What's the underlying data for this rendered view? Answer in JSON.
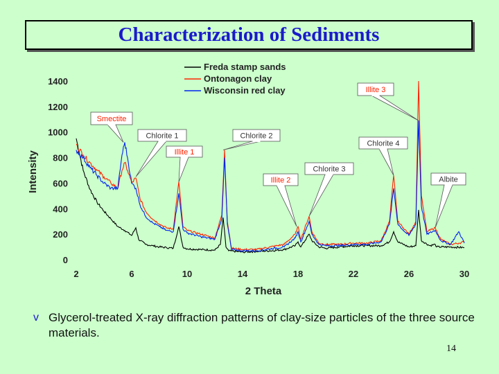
{
  "title": "Characterization of Sediments",
  "caption": {
    "bullet": "v",
    "text": "Glycerol-treated X-ray diffraction patterns of clay-size particles of the three source materials."
  },
  "page_number": "14",
  "colors": {
    "title": "#1a1acc",
    "background": "#ccffcc",
    "freda": "#000000",
    "ontonagon": "#ff2200",
    "wisconsin": "#0022ee"
  },
  "chart_data": {
    "type": "line",
    "xlabel": "2 Theta",
    "ylabel": "Intensity",
    "xlim": [
      2,
      30
    ],
    "ylim": [
      0,
      1400
    ],
    "x_ticks": [
      2,
      6,
      10,
      14,
      18,
      22,
      26,
      30
    ],
    "y_ticks": [
      0,
      200,
      400,
      600,
      800,
      1000,
      1200,
      1400
    ],
    "legend_position": "top",
    "series": [
      {
        "name": "Freda stamp sands",
        "color": "#000000",
        "points": [
          [
            2,
            950
          ],
          [
            2.5,
            700
          ],
          [
            3,
            550
          ],
          [
            3.5,
            450
          ],
          [
            4,
            380
          ],
          [
            4.5,
            320
          ],
          [
            5,
            260
          ],
          [
            5.5,
            230
          ],
          [
            6,
            190
          ],
          [
            6.3,
            250
          ],
          [
            6.5,
            160
          ],
          [
            7,
            120
          ],
          [
            7.5,
            110
          ],
          [
            8,
            100
          ],
          [
            8.5,
            95
          ],
          [
            9,
            90
          ],
          [
            9.4,
            260
          ],
          [
            9.7,
            100
          ],
          [
            10,
            85
          ],
          [
            11,
            80
          ],
          [
            12,
            75
          ],
          [
            12.4,
            120
          ],
          [
            12.6,
            330
          ],
          [
            12.8,
            100
          ],
          [
            13,
            70
          ],
          [
            14,
            60
          ],
          [
            15,
            65
          ],
          [
            16,
            70
          ],
          [
            17,
            80
          ],
          [
            17.8,
            110
          ],
          [
            18,
            140
          ],
          [
            18.2,
            100
          ],
          [
            18.8,
            200
          ],
          [
            19,
            150
          ],
          [
            19.5,
            100
          ],
          [
            20,
            90
          ],
          [
            21,
            100
          ],
          [
            22,
            110
          ],
          [
            23,
            110
          ],
          [
            24,
            110
          ],
          [
            24.6,
            140
          ],
          [
            24.9,
            220
          ],
          [
            25.2,
            140
          ],
          [
            26,
            100
          ],
          [
            26.5,
            110
          ],
          [
            26.7,
            390
          ],
          [
            26.9,
            150
          ],
          [
            27.5,
            110
          ],
          [
            27.9,
            120
          ],
          [
            28,
            100
          ],
          [
            29,
            100
          ],
          [
            30,
            95
          ]
        ]
      },
      {
        "name": "Ontonagon clay",
        "color": "#ff2200",
        "points": [
          [
            2,
            900
          ],
          [
            2.5,
            820
          ],
          [
            3,
            760
          ],
          [
            3.5,
            700
          ],
          [
            4,
            650
          ],
          [
            4.5,
            600
          ],
          [
            5,
            560
          ],
          [
            5.3,
            700
          ],
          [
            5.5,
            760
          ],
          [
            5.7,
            700
          ],
          [
            6,
            600
          ],
          [
            6.3,
            640
          ],
          [
            6.6,
            480
          ],
          [
            7,
            380
          ],
          [
            7.5,
            320
          ],
          [
            8,
            280
          ],
          [
            8.5,
            250
          ],
          [
            9,
            240
          ],
          [
            9.4,
            610
          ],
          [
            9.7,
            260
          ],
          [
            10,
            230
          ],
          [
            11,
            200
          ],
          [
            12,
            170
          ],
          [
            12.5,
            350
          ],
          [
            12.7,
            860
          ],
          [
            12.9,
            300
          ],
          [
            13.2,
            90
          ],
          [
            14,
            80
          ],
          [
            15,
            80
          ],
          [
            16,
            100
          ],
          [
            17,
            120
          ],
          [
            17.8,
            200
          ],
          [
            18,
            260
          ],
          [
            18.2,
            160
          ],
          [
            18.8,
            340
          ],
          [
            19,
            220
          ],
          [
            19.5,
            130
          ],
          [
            20,
            120
          ],
          [
            21,
            120
          ],
          [
            22,
            130
          ],
          [
            23,
            130
          ],
          [
            24,
            150
          ],
          [
            24.6,
            300
          ],
          [
            24.9,
            660
          ],
          [
            25.2,
            300
          ],
          [
            25.6,
            250
          ],
          [
            26,
            200
          ],
          [
            26.5,
            300
          ],
          [
            26.7,
            1400
          ],
          [
            26.9,
            500
          ],
          [
            27.3,
            220
          ],
          [
            27.9,
            250
          ],
          [
            28.3,
            160
          ],
          [
            29,
            120
          ],
          [
            29.6,
            130
          ],
          [
            30,
            140
          ]
        ]
      },
      {
        "name": "Wisconsin red clay",
        "color": "#0022ee",
        "points": [
          [
            2,
            860
          ],
          [
            2.5,
            800
          ],
          [
            3,
            720
          ],
          [
            3.5,
            660
          ],
          [
            4,
            600
          ],
          [
            4.5,
            560
          ],
          [
            5,
            560
          ],
          [
            5.3,
            820
          ],
          [
            5.5,
            920
          ],
          [
            5.7,
            800
          ],
          [
            6,
            600
          ],
          [
            6.3,
            560
          ],
          [
            6.6,
            430
          ],
          [
            7,
            340
          ],
          [
            7.5,
            290
          ],
          [
            8,
            260
          ],
          [
            8.5,
            230
          ],
          [
            9,
            220
          ],
          [
            9.4,
            520
          ],
          [
            9.7,
            240
          ],
          [
            10,
            210
          ],
          [
            11,
            180
          ],
          [
            12,
            160
          ],
          [
            12.5,
            320
          ],
          [
            12.7,
            800
          ],
          [
            12.9,
            280
          ],
          [
            13.2,
            80
          ],
          [
            14,
            70
          ],
          [
            15,
            70
          ],
          [
            16,
            85
          ],
          [
            17,
            100
          ],
          [
            17.8,
            170
          ],
          [
            18,
            220
          ],
          [
            18.2,
            140
          ],
          [
            18.8,
            300
          ],
          [
            19,
            200
          ],
          [
            19.5,
            120
          ],
          [
            20,
            110
          ],
          [
            21,
            110
          ],
          [
            22,
            120
          ],
          [
            23,
            120
          ],
          [
            24,
            140
          ],
          [
            24.6,
            280
          ],
          [
            24.9,
            560
          ],
          [
            25.2,
            280
          ],
          [
            25.6,
            230
          ],
          [
            26,
            190
          ],
          [
            26.5,
            280
          ],
          [
            26.7,
            1090
          ],
          [
            26.9,
            420
          ],
          [
            27.3,
            200
          ],
          [
            27.9,
            230
          ],
          [
            28.3,
            150
          ],
          [
            29,
            120
          ],
          [
            29.6,
            220
          ],
          [
            30,
            130
          ]
        ]
      }
    ],
    "annotations": [
      {
        "label": "Smectite",
        "color": "#ff2200",
        "x": 5.5
      },
      {
        "label": "Chlorite 1",
        "color": "#333333",
        "x": 6.3
      },
      {
        "label": "Illite 1",
        "color": "#ff2200",
        "x": 9.4
      },
      {
        "label": "Chlorite 2",
        "color": "#333333",
        "x": 12.6
      },
      {
        "label": "Illite 2",
        "color": "#ff2200",
        "x": 17.9
      },
      {
        "label": "Chlorite 3",
        "color": "#333333",
        "x": 18.8
      },
      {
        "label": "Chlorite 4",
        "color": "#333333",
        "x": 24.9
      },
      {
        "label": "Illite 3",
        "color": "#ff2200",
        "x": 26.7
      },
      {
        "label": "Albite",
        "color": "#333333",
        "x": 27.9
      }
    ]
  }
}
